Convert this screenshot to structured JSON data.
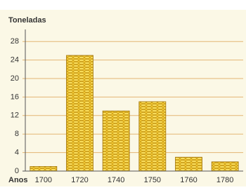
{
  "chart_data": {
    "type": "bar",
    "y_label": "Toneladas",
    "x_label": "Anos",
    "categories": [
      "1700",
      "1720",
      "1740",
      "1750",
      "1760",
      "1780"
    ],
    "values": [
      1,
      25,
      13,
      15,
      3,
      2
    ],
    "color": "#e8b923",
    "ylim": [
      0,
      30
    ],
    "yticks": [
      0,
      4,
      8,
      12,
      16,
      20,
      24,
      28
    ],
    "grid": true
  }
}
